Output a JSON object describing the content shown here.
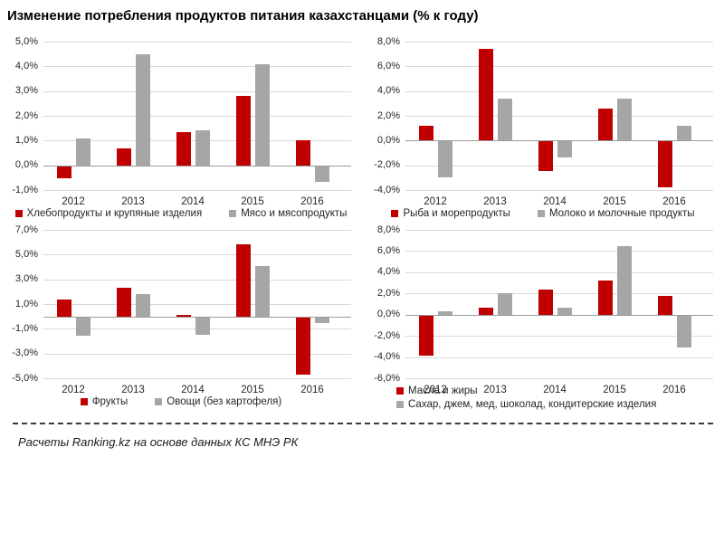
{
  "page": {
    "title": "Изменение потребления продуктов питания казахстанцами (% к году)",
    "footer": "Расчеты Ranking.kz на основе данных КС МНЭ РК"
  },
  "colors": {
    "red": "#C00000",
    "gray": "#A6A6A6",
    "gridline": "#D9D9D9",
    "axis": "#9B9B9B"
  },
  "chart_data": [
    {
      "type": "bar",
      "name": "bread-and-meat",
      "categories": [
        "2012",
        "2013",
        "2014",
        "2015",
        "2016"
      ],
      "series": [
        {
          "name": "Хлебопродукты и крупяные изделия",
          "color_key": "red",
          "values": [
            -0.5,
            0.7,
            1.35,
            2.8,
            1.0
          ]
        },
        {
          "name": "Мясо и мясопродукты",
          "color_key": "gray",
          "values": [
            1.1,
            4.5,
            1.4,
            4.1,
            -0.65
          ]
        }
      ],
      "ylim": [
        -1,
        5
      ],
      "ytick_values": [
        5,
        4,
        3,
        2,
        1,
        0,
        -1
      ],
      "ytick_labels": [
        "5,0%",
        "4,0%",
        "3,0%",
        "2,0%",
        "1,0%",
        "0,0%",
        "-1,0%"
      ],
      "grid": true,
      "legend_position": "bottom-center",
      "legend_layout": "row"
    },
    {
      "type": "bar",
      "name": "fish-and-milk",
      "categories": [
        "2012",
        "2013",
        "2014",
        "2015",
        "2016"
      ],
      "series": [
        {
          "name": "Рыба и морепродукты",
          "color_key": "red",
          "values": [
            1.2,
            7.4,
            -2.4,
            2.6,
            -3.7
          ]
        },
        {
          "name": "Молоко и молочные продукты",
          "color_key": "gray",
          "values": [
            -2.9,
            3.4,
            -1.3,
            3.4,
            1.2
          ]
        }
      ],
      "ylim": [
        -4,
        8
      ],
      "ytick_values": [
        8,
        6,
        4,
        2,
        0,
        -2,
        -4
      ],
      "ytick_labels": [
        "8,0%",
        "6,0%",
        "4,0%",
        "2,0%",
        "0,0%",
        "-2,0%",
        "-4,0%"
      ],
      "grid": true,
      "legend_position": "bottom-center",
      "legend_layout": "row"
    },
    {
      "type": "bar",
      "name": "fruits-and-vegetables",
      "categories": [
        "2012",
        "2013",
        "2014",
        "2015",
        "2016"
      ],
      "series": [
        {
          "name": "Фрукты",
          "color_key": "red",
          "values": [
            1.4,
            2.3,
            0.15,
            5.8,
            -4.6
          ]
        },
        {
          "name": "Овощи (без картофеля)",
          "color_key": "gray",
          "values": [
            -1.5,
            1.8,
            -1.4,
            4.1,
            -0.5
          ]
        }
      ],
      "ylim": [
        -5,
        7
      ],
      "ytick_values": [
        7,
        5,
        3,
        1,
        -1,
        -3,
        -5
      ],
      "ytick_labels": [
        "7,0%",
        "5,0%",
        "3,0%",
        "1,0%",
        "-1,0%",
        "-3,0%",
        "-5,0%"
      ],
      "grid": true,
      "legend_position": "bottom-center",
      "legend_layout": "row"
    },
    {
      "type": "bar",
      "name": "oils-and-sugar",
      "categories": [
        "2012",
        "2013",
        "2014",
        "2015",
        "2016"
      ],
      "series": [
        {
          "name": "Масла и жиры",
          "color_key": "red",
          "values": [
            -3.8,
            0.65,
            2.4,
            3.2,
            1.8
          ]
        },
        {
          "name": "Сахар, джем, мед, шоколад, кондитерские изделия",
          "color_key": "gray",
          "values": [
            0.35,
            2.0,
            0.7,
            6.5,
            -3.0
          ]
        }
      ],
      "ylim": [
        -6,
        8
      ],
      "ytick_values": [
        8,
        6,
        4,
        2,
        0,
        -2,
        -4,
        -6
      ],
      "ytick_labels": [
        "8,0%",
        "6,0%",
        "4,0%",
        "2,0%",
        "0,0%",
        "-2,0%",
        "-4,0%",
        "-6,0%"
      ],
      "grid": true,
      "legend_position": "bottom-left",
      "legend_layout": "column"
    }
  ]
}
